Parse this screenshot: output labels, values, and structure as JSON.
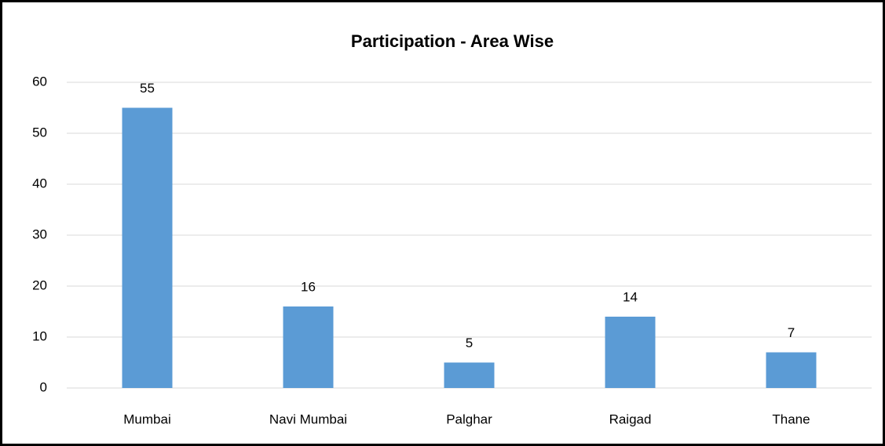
{
  "chart_data": {
    "type": "bar",
    "title": "Participation - Area Wise",
    "categories": [
      "Mumbai",
      "Navi Mumbai",
      "Palghar",
      "Raigad",
      "Thane"
    ],
    "values": [
      55,
      16,
      5,
      14,
      7
    ],
    "color": "#5b9bd5",
    "ylim": [
      0,
      60
    ],
    "yticks": [
      0,
      10,
      20,
      30,
      40,
      50,
      60
    ],
    "grid": true
  }
}
